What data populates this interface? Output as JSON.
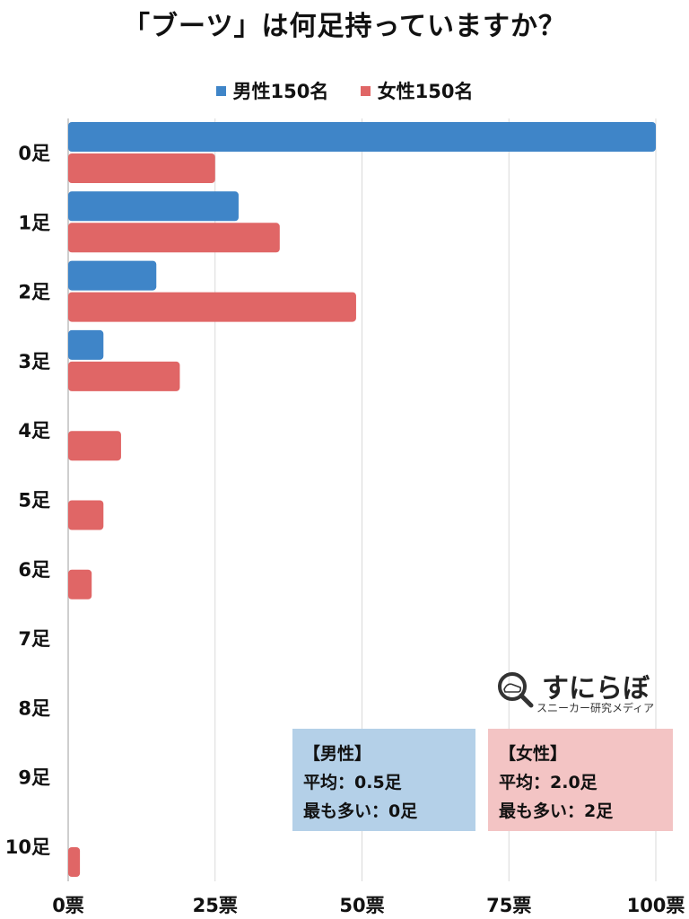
{
  "chart_data": {
    "type": "bar",
    "orientation": "horizontal",
    "title": "「ブーツ」は何足持っていますか？",
    "categories": [
      "0足",
      "1足",
      "2足",
      "3足",
      "4足",
      "5足",
      "6足",
      "7足",
      "8足",
      "9足",
      "10足"
    ],
    "series": [
      {
        "name": "男性150名",
        "color": "#3f85c8",
        "values": [
          100,
          29,
          15,
          6,
          0,
          0,
          0,
          0,
          0,
          0,
          0
        ]
      },
      {
        "name": "女性150名",
        "color": "#e06666",
        "values": [
          25,
          36,
          49,
          19,
          9,
          6,
          4,
          0,
          0,
          0,
          2
        ]
      }
    ],
    "xlim": [
      0,
      100
    ],
    "x_ticks": [
      "0票",
      "25票",
      "50票",
      "75票",
      "100票"
    ],
    "x_tick_values": [
      0,
      25,
      50,
      75,
      100
    ],
    "grid": "vertical",
    "legend_position": "top"
  },
  "summary": {
    "male": {
      "heading": "【男性】",
      "average": "平均：0.5足",
      "mode": "最も多い：0足"
    },
    "female": {
      "heading": "【女性】",
      "average": "平均：2.0足",
      "mode": "最も多い：2足"
    }
  },
  "logo": {
    "text": "すにらぼ",
    "subtitle": "スニーカー研究メディア",
    "icon": "magnifier-sneaker-icon"
  }
}
